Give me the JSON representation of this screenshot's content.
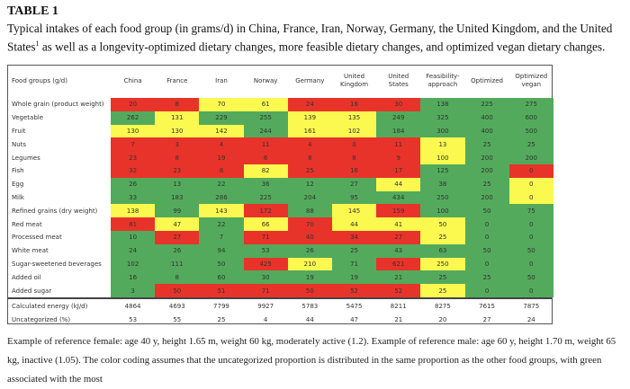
{
  "title": "TABLE 1",
  "caption": "Typical intakes of each food group (in grams/d) in China, France, Iran, Norway, Germany, the United Kingdom, and the United States",
  "caption_sup": "1",
  "caption_rest": " as well as a longevity-optimized dietary changes, more feasible dietary changes, and optimized vegan dietary changes.",
  "colors": {
    "R": "#e8332a",
    "Y": "#fbf94f",
    "G": "#53aa5c"
  },
  "table": {
    "header_label": "Food groups (g/d)",
    "columns": [
      [
        "China"
      ],
      [
        "France"
      ],
      [
        "Iran"
      ],
      [
        "Norway"
      ],
      [
        "Germany"
      ],
      [
        "United",
        "Kingdom"
      ],
      [
        "United",
        "States"
      ],
      [
        "Feasibility-",
        "approach"
      ],
      [
        "Optimized"
      ],
      [
        "Optimized",
        "vegan"
      ]
    ],
    "rows": [
      {
        "label": "Whole grain (product weight)",
        "values": [
          "20",
          "8",
          "70",
          "61",
          "24",
          "16",
          "30",
          "138",
          "225",
          "275"
        ],
        "colors": "RRYYRRRGGG"
      },
      {
        "label": "Vegetable",
        "values": [
          "262",
          "131",
          "229",
          "255",
          "139",
          "135",
          "249",
          "325",
          "400",
          "600"
        ],
        "colors": "GYGGYYGGGG"
      },
      {
        "label": "Fruit",
        "values": [
          "130",
          "130",
          "142",
          "244",
          "161",
          "102",
          "184",
          "300",
          "400",
          "500"
        ],
        "colors": "YYYGYYGGGG"
      },
      {
        "label": "Nuts",
        "values": [
          "7",
          "3",
          "4",
          "11",
          "4",
          "0",
          "11",
          "13",
          "25",
          "25"
        ],
        "colors": "RRRRRRRYGG"
      },
      {
        "label": "Legumes",
        "values": [
          "23",
          "8",
          "19",
          "6",
          "8",
          "8",
          "9",
          "100",
          "200",
          "200"
        ],
        "colors": "RRRRRRRYGG"
      },
      {
        "label": "Fish",
        "values": [
          "32",
          "23",
          "8",
          "82",
          "25",
          "16",
          "17",
          "125",
          "200",
          "0"
        ],
        "colors": "RRRYRRRGGR"
      },
      {
        "label": "Egg",
        "values": [
          "26",
          "13",
          "22",
          "36",
          "12",
          "27",
          "44",
          "38",
          "25",
          "0"
        ],
        "colors": "GGGGGGYGGY"
      },
      {
        "label": "Milk",
        "values": [
          "33",
          "183",
          "286",
          "225",
          "204",
          "95",
          "434",
          "250",
          "200",
          "0"
        ],
        "colors": "GGGGGGGGGY"
      },
      {
        "label": "Refined grains (dry weight)",
        "values": [
          "138",
          "99",
          "143",
          "172",
          "88",
          "145",
          "159",
          "100",
          "50",
          "75"
        ],
        "colors": "YGYRGYRGGG"
      },
      {
        "label": "Red meat",
        "values": [
          "81",
          "47",
          "22",
          "66",
          "70",
          "44",
          "41",
          "50",
          "0",
          "0"
        ],
        "colors": "RYGYRYYYGG"
      },
      {
        "label": "Processed meat",
        "values": [
          "10",
          "27",
          "7",
          "71",
          "40",
          "34",
          "27",
          "25",
          "0",
          "0"
        ],
        "colors": "GRGRRRRYGG"
      },
      {
        "label": "White meat",
        "values": [
          "24",
          "26",
          "94",
          "53",
          "26",
          "25",
          "43",
          "63",
          "50",
          "50"
        ],
        "colors": "GGGGGGGGGG"
      },
      {
        "label": "Sugar-sweetened beverages",
        "values": [
          "102",
          "111",
          "50",
          "425",
          "210",
          "71",
          "621",
          "250",
          "0",
          "0"
        ],
        "colors": "GGGRYGRYGG"
      },
      {
        "label": "Added oil",
        "values": [
          "16",
          "8",
          "60",
          "30",
          "19",
          "19",
          "21",
          "25",
          "25",
          "50"
        ],
        "colors": "GGGGGGGGGG"
      },
      {
        "label": "Added sugar",
        "values": [
          "3",
          "50",
          "51",
          "71",
          "50",
          "52",
          "52",
          "25",
          "0",
          "0"
        ],
        "colors": "GRRRRRRYGG"
      }
    ],
    "summary_rows": [
      {
        "label": "Calculated energy (kJ/d)",
        "values": [
          "4864",
          "4693",
          "7799",
          "9927",
          "5783",
          "5475",
          "8211",
          "8275",
          "7615",
          "7875"
        ]
      },
      {
        "label": "Uncategorized (%)",
        "values": [
          "53",
          "55",
          "25",
          "4",
          "44",
          "47",
          "21",
          "20",
          "27",
          "24"
        ]
      }
    ]
  },
  "footnote": "Example of reference female: age 40 y, height 1.65 m, weight 60 kg, moderately active (1.2). Example of reference male: age 60 y, height 1.70 m, weight 65 kg, inactive (1.05). The color coding assumes that the uncategorized proportion is distributed in the same proportion as the other food groups, with green associated with the most"
}
